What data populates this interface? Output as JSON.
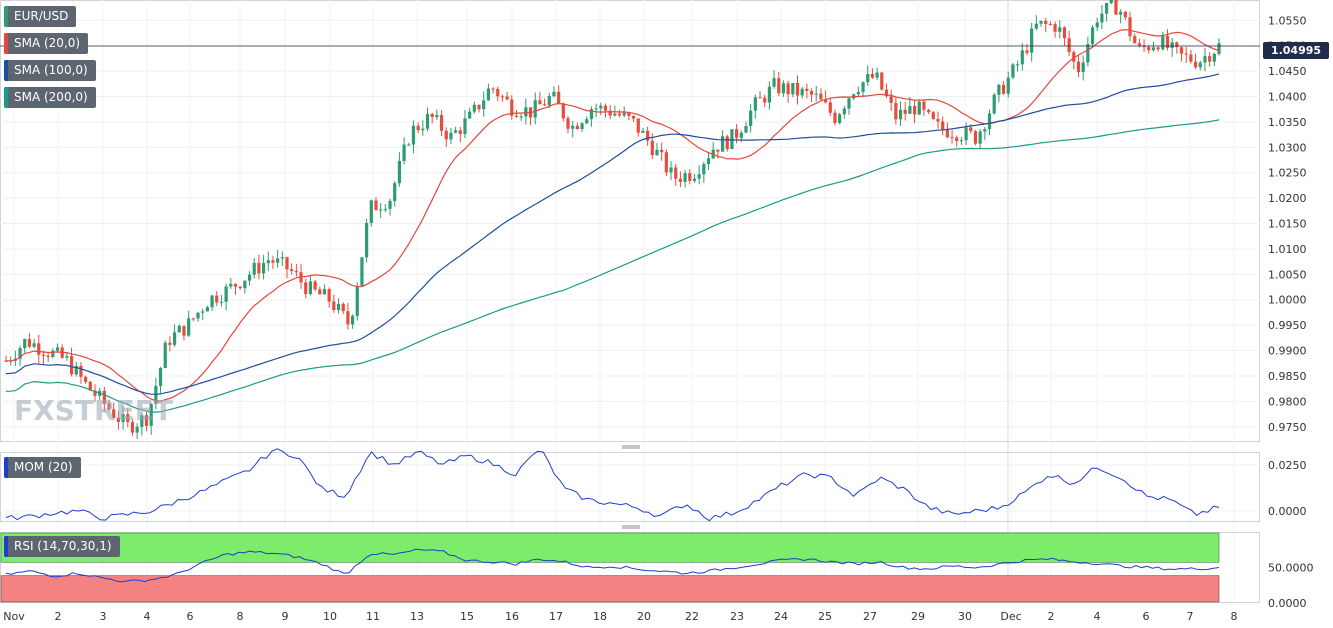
{
  "chart_data": {
    "type": "candlestick",
    "symbol": "EUR/USD",
    "last_price": "1.04995",
    "watermark": "FXSTREET",
    "price_axis": {
      "range": [
        0.972,
        1.059
      ],
      "ticks": [
        "1.0550",
        "1.0500",
        "1.0450",
        "1.0400",
        "1.0350",
        "1.0300",
        "1.0250",
        "1.0200",
        "1.0150",
        "1.0100",
        "1.0050",
        "1.0000",
        "0.9950",
        "0.9900",
        "0.9850",
        "0.9800",
        "0.9750"
      ]
    },
    "x_labels": [
      "Nov",
      "2",
      "3",
      "4",
      "6",
      "8",
      "9",
      "10",
      "11",
      "13",
      "15",
      "16",
      "17",
      "18",
      "20",
      "22",
      "23",
      "24",
      "25",
      "27",
      "29",
      "30",
      "Dec",
      "2",
      "4",
      "6",
      "7",
      "8"
    ],
    "indicators": [
      {
        "name": "SMA (20,0)",
        "color": "#e8453c"
      },
      {
        "name": "SMA (100,0)",
        "color": "#1f4e9b"
      },
      {
        "name": "SMA (200,0)",
        "color": "#1a9c8a"
      }
    ],
    "anchors": [
      0.988,
      0.992,
      0.99,
      0.988,
      0.983,
      0.979,
      0.975,
      0.977,
      0.992,
      0.995,
      1.0,
      1.002,
      1.005,
      1.008,
      1.006,
      1.002,
      1.0,
      0.995,
      1.018,
      1.02,
      1.033,
      1.036,
      1.032,
      1.036,
      1.042,
      1.038,
      1.037,
      1.04,
      1.034,
      1.038,
      1.037,
      1.035,
      1.03,
      1.024,
      1.025,
      1.03,
      1.032,
      1.038,
      1.042,
      1.041,
      1.04,
      1.036,
      1.042,
      1.044,
      1.036,
      1.038,
      1.034,
      1.033,
      1.032,
      1.04,
      1.046,
      1.054,
      1.054,
      1.045,
      1.056,
      1.058,
      1.049,
      1.051,
      1.048,
      1.047,
      1.04995
    ],
    "momentum": {
      "name": "MOM (20)",
      "ticks": [
        "0.0250",
        "0.0000"
      ],
      "range": [
        -0.006,
        0.032
      ],
      "anchors": [
        -0.004,
        -0.003,
        -0.001,
        0.0,
        -0.004,
        -0.002,
        0.0,
        0.005,
        0.01,
        0.016,
        0.022,
        0.033,
        0.03,
        0.012,
        0.008,
        0.032,
        0.025,
        0.032,
        0.025,
        0.03,
        0.026,
        0.02,
        0.034,
        0.012,
        0.006,
        0.004,
        0.002,
        -0.003,
        0.004,
        -0.004,
        -0.001,
        0.006,
        0.014,
        0.02,
        0.018,
        0.008,
        0.018,
        0.012,
        0.002,
        -0.002,
        0.0,
        0.002,
        0.01,
        0.02,
        0.015,
        0.024,
        0.018,
        0.008,
        0.006,
        -0.002,
        0.002
      ]
    },
    "rsi": {
      "name": "RSI (14,70,30,1)",
      "ticks": [
        "50.0000",
        "0.0000"
      ],
      "range": [
        0,
        100
      ],
      "overbought": 70,
      "oversold": 30,
      "anchors": [
        40,
        45,
        38,
        42,
        35,
        30,
        33,
        40,
        55,
        68,
        72,
        70,
        65,
        55,
        40,
        70,
        68,
        75,
        72,
        60,
        58,
        55,
        62,
        58,
        50,
        52,
        48,
        45,
        42,
        45,
        50,
        55,
        60,
        62,
        58,
        55,
        58,
        50,
        48,
        52,
        50,
        55,
        60,
        62,
        58,
        56,
        52,
        50,
        48,
        48,
        50
      ]
    },
    "colors": {
      "up": "#2e9b72",
      "down": "#e74c3c",
      "mom_line": "#1f3ec9",
      "rsi_line": "#1f3ec9",
      "rsi_high": "#7cec6a",
      "rsi_low": "#f38283"
    }
  }
}
